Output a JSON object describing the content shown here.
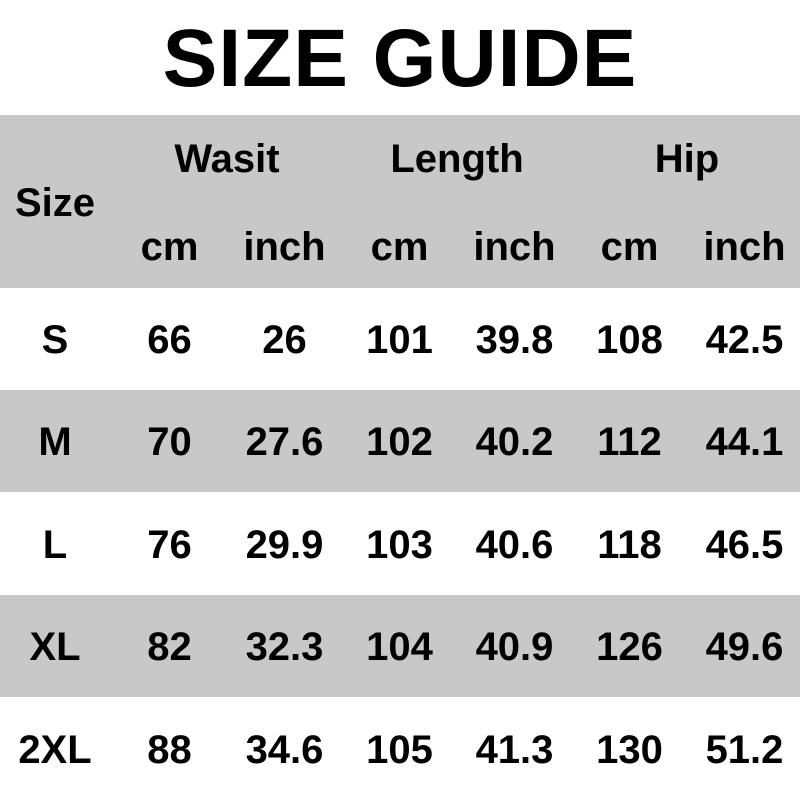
{
  "title": "SIZE GUIDE",
  "header": {
    "size_label": "Size",
    "groups": [
      "Wasit",
      "Length",
      "Hip"
    ],
    "units": [
      "cm",
      "inch",
      "cm",
      "inch",
      "cm",
      "inch"
    ]
  },
  "rows": [
    {
      "size": "S",
      "values": [
        "66",
        "26",
        "101",
        "39.8",
        "108",
        "42.5"
      ]
    },
    {
      "size": "M",
      "values": [
        "70",
        "27.6",
        "102",
        "40.2",
        "112",
        "44.1"
      ]
    },
    {
      "size": "L",
      "values": [
        "76",
        "29.9",
        "103",
        "40.6",
        "118",
        "46.5"
      ]
    },
    {
      "size": "XL",
      "values": [
        "82",
        "32.3",
        "104",
        "40.9",
        "126",
        "49.6"
      ]
    },
    {
      "size": "2XL",
      "values": [
        "88",
        "34.6",
        "105",
        "41.3",
        "130",
        "51.2"
      ]
    }
  ],
  "colors": {
    "stripe": "#c8c8c8",
    "background": "#ffffff",
    "text": "#000000"
  }
}
